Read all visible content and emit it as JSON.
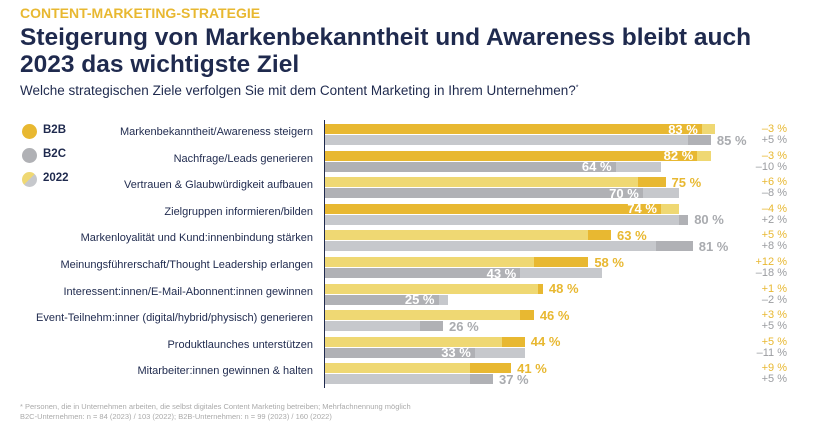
{
  "kicker": "CONTENT-MARKETING-STRATEGIE",
  "title": "Steigerung von Markenbekanntheit und Awareness bleibt auch 2023 das wichtigste Ziel",
  "subtitle": "Welche strategischen Ziele verfolgen Sie mit dem Content Marketing in Ihrem Unternehmen?",
  "subtitle_mark": "*",
  "legend": [
    {
      "label": "B2B",
      "color": "#e8b831"
    },
    {
      "label": "B2C",
      "color": "#b0b1b5"
    },
    {
      "label": "2022",
      "color": "#efd873"
    }
  ],
  "colors": {
    "b2b_2023": "#e8b831",
    "b2b_2022": "#efd873",
    "b2c_2023": "#b0b1b5",
    "b2c_2022": "#c6c8cc"
  },
  "chart_data": {
    "type": "bar",
    "orientation": "horizontal",
    "unit": "%",
    "categories": [
      "Markenbekanntheit/Awareness steigern",
      "Nachfrage/Leads generieren",
      "Vertrauen & Glaubwürdigkeit aufbauen",
      "Zielgruppen informieren/bilden",
      "Markenloyalität und Kund:innenbindung stärken",
      "Meinungsführerschaft/Thought Leadership erlangen",
      "Interessent:innen/E-Mail-Abonnent:innen gewinnen",
      "Event-Teilnehm:inner (digital/hybrid/physisch) generieren",
      "Produktlaunches unterstützen",
      "Mitarbeiter:innen gewinnen & halten"
    ],
    "series": [
      {
        "name": "B2B",
        "year": "2023",
        "values": [
          83,
          82,
          75,
          74,
          63,
          58,
          48,
          46,
          44,
          41
        ],
        "labels": [
          "83 %",
          "82 %",
          "75 %",
          "74 %",
          "63 %",
          "58 %",
          "48 %",
          "46 %",
          "44 %",
          "41 %"
        ],
        "change": [
          "–3 %",
          "–3 %",
          "+6 %",
          "–4 %",
          "+5 %",
          "+12 %",
          "+1 %",
          "+3 %",
          "+5 %",
          "+9 %"
        ]
      },
      {
        "name": "B2C",
        "year": "2023",
        "values": [
          85,
          64,
          70,
          80,
          81,
          43,
          25,
          26,
          33,
          37
        ],
        "labels": [
          "85 %",
          "64 %",
          "70 %",
          "80 %",
          "81 %",
          "43 %",
          "25 %",
          "26 %",
          "33 %",
          "37 %"
        ],
        "change": [
          "+5 %",
          "–10 %",
          "–8 %",
          "+2 %",
          "+8 %",
          "–18 %",
          "–2 %",
          "+5 %",
          "–11 %",
          "+5 %"
        ]
      },
      {
        "name": "B2B",
        "year": "2022",
        "values": [
          86,
          85,
          69,
          78,
          58,
          46,
          47,
          43,
          39,
          32
        ]
      },
      {
        "name": "B2C",
        "year": "2022",
        "values": [
          80,
          74,
          78,
          78,
          73,
          61,
          27,
          21,
          44,
          32
        ]
      }
    ],
    "xlim": [
      0,
      100
    ]
  },
  "footnote": [
    "* Personen, die in Unternehmen arbeiten, die selbst digitales Content Marketing betreiben; Mehrfachnennung möglich",
    "B2C-Unternehmen: n = 84 (2023) / 103 (2022); B2B-Unternehmen: n = 99 (2023) / 160 (2022)"
  ]
}
